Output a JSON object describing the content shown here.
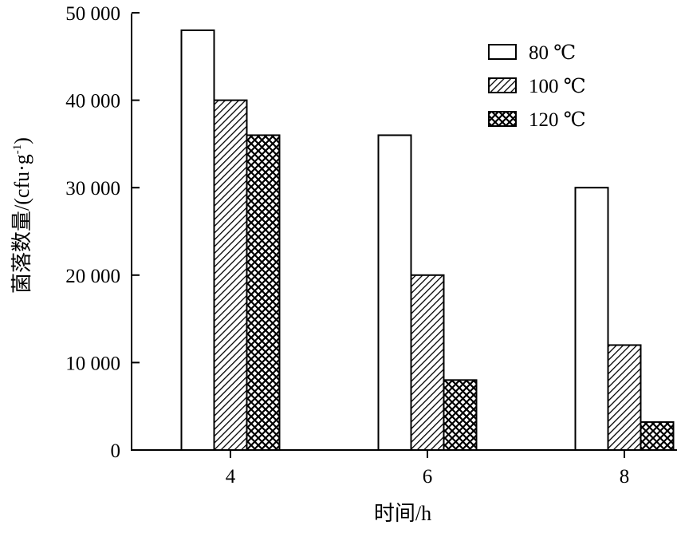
{
  "chart_data": {
    "type": "bar",
    "categories": [
      "4",
      "6",
      "8"
    ],
    "xlabel": "时间/h",
    "ylabel": "菌落数量/(cfu·g",
    "ylabel_sup": "-1",
    "ylabel_close": ")",
    "ylim": [
      0,
      50000
    ],
    "yticks": [
      "0",
      "10 000",
      "20 000",
      "30 000",
      "40 000",
      "50 000"
    ],
    "legend_position": "top-right",
    "series": [
      {
        "name": "80 ℃",
        "values": [
          48000,
          36000,
          30000
        ],
        "pattern": "white"
      },
      {
        "name": "100 ℃",
        "values": [
          40000,
          20000,
          12000
        ],
        "pattern": "hatch"
      },
      {
        "name": "120 ℃",
        "values": [
          36000,
          8000,
          3200
        ],
        "pattern": "crosshatch"
      }
    ]
  }
}
